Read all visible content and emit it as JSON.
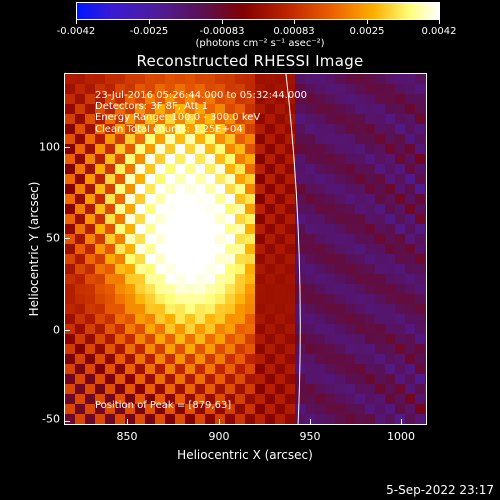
{
  "colorbar": {
    "ticks": [
      "-0.0042",
      "-0.0025",
      "-0.00083",
      "0.00083",
      "0.0025",
      "0.0042"
    ],
    "units": "(photons cm⁻² s⁻¹ asec⁻²)",
    "min": -0.0042,
    "max": 0.0042
  },
  "plot": {
    "title": "Reconstructed RHESSI Image",
    "annotation_lines": [
      "23-Jul-2016 05:26:44.000 to 05:32:44.000",
      "Detectors: 3F 8F, Att 1",
      "Energy Range: 100.0 - 300.0 keV",
      "Clean    Total counts: 1.25E+04"
    ],
    "peak_label": "Position of Peak = [879,63]",
    "xlabel": "Heliocentric X (arcsec)",
    "ylabel": "Heliocentric Y (arcsec)",
    "xticks": [
      "850",
      "900",
      "950",
      "1000"
    ],
    "yticks": [
      "100",
      "50",
      "0",
      "-50"
    ],
    "xlim": [
      822,
      1012
    ],
    "ylim": [
      -52,
      140
    ],
    "limb_color": "#ffffff",
    "peak_position": [
      879,
      63
    ]
  },
  "footer": {
    "timestamp": "5-Sep-2022 23:17"
  },
  "colors": {
    "background": "#000000",
    "colormap": [
      "#0015ff",
      "#3a1bd4",
      "#4e1c9a",
      "#5a1050",
      "#820000",
      "#bd2400",
      "#ea5e00",
      "#ffaf00",
      "#ffff7a",
      "#ffffff"
    ]
  }
}
